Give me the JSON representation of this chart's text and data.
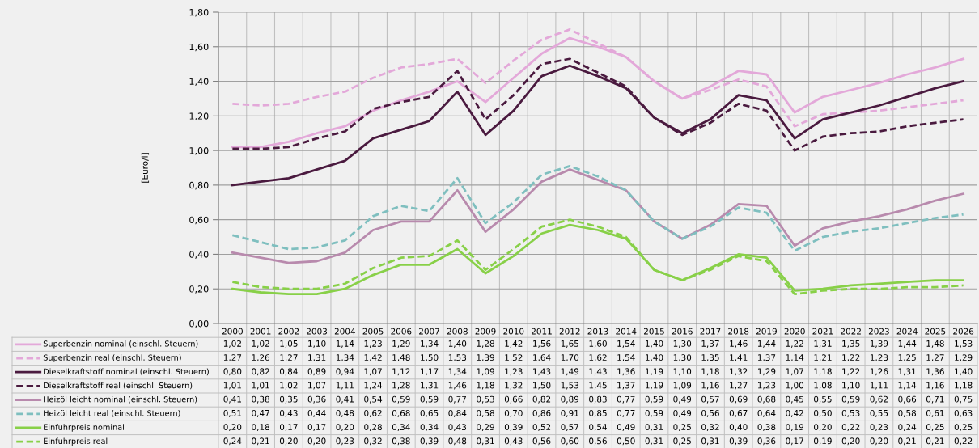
{
  "chart_data": {
    "type": "line",
    "ylabel": "[Euro/l]",
    "categories": [
      "2000",
      "2001",
      "2002",
      "2003",
      "2004",
      "2005",
      "2006",
      "2007",
      "2008",
      "2009",
      "2010",
      "2011",
      "2012",
      "2013",
      "2014",
      "2015",
      "2016",
      "2017",
      "2018",
      "2019",
      "2020",
      "2021",
      "2022",
      "2023",
      "2024",
      "2025",
      "2026"
    ],
    "ylim": [
      0,
      1.8
    ],
    "yticks": [
      {
        "value": 0,
        "label": "0,00"
      },
      {
        "value": 0.2,
        "label": "0,20"
      },
      {
        "value": 0.4,
        "label": "0,40"
      },
      {
        "value": 0.6,
        "label": "0,60"
      },
      {
        "value": 0.8,
        "label": "0,80"
      },
      {
        "value": 1.0,
        "label": "1,00"
      },
      {
        "value": 1.2,
        "label": "1,20"
      },
      {
        "value": 1.4,
        "label": "1,40"
      },
      {
        "value": 1.6,
        "label": "1,60"
      },
      {
        "value": 1.8,
        "label": "1,80"
      }
    ],
    "grid": true,
    "legend": "bottom",
    "marker": "none",
    "series": [
      {
        "name": "Superbenzin nominal (einschl. Steuern)",
        "color": "#e3a8d9",
        "line_style": "solid",
        "values": [
          1.02,
          1.02,
          1.05,
          1.1,
          1.14,
          1.23,
          1.29,
          1.34,
          1.4,
          1.28,
          1.42,
          1.56,
          1.65,
          1.6,
          1.54,
          1.4,
          1.3,
          1.37,
          1.46,
          1.44,
          1.22,
          1.31,
          1.35,
          1.39,
          1.44,
          1.48,
          1.53
        ],
        "value_labels": [
          "1,02",
          "1,02",
          "1,05",
          "1,10",
          "1,14",
          "1,23",
          "1,29",
          "1,34",
          "1,40",
          "1,28",
          "1,42",
          "1,56",
          "1,65",
          "1,60",
          "1,54",
          "1,40",
          "1,30",
          "1,37",
          "1,46",
          "1,44",
          "1,22",
          "1,31",
          "1,35",
          "1,39",
          "1,44",
          "1,48",
          "1,53"
        ]
      },
      {
        "name": "Superbenzin real (einschl. Steuern)",
        "color": "#e3a8d9",
        "line_style": "dashed",
        "values": [
          1.27,
          1.26,
          1.27,
          1.31,
          1.34,
          1.42,
          1.48,
          1.5,
          1.53,
          1.39,
          1.52,
          1.64,
          1.7,
          1.62,
          1.54,
          1.4,
          1.3,
          1.35,
          1.41,
          1.37,
          1.14,
          1.21,
          1.22,
          1.23,
          1.25,
          1.27,
          1.29
        ],
        "value_labels": [
          "1,27",
          "1,26",
          "1,27",
          "1,31",
          "1,34",
          "1,42",
          "1,48",
          "1,50",
          "1,53",
          "1,39",
          "1,52",
          "1,64",
          "1,70",
          "1,62",
          "1,54",
          "1,40",
          "1,30",
          "1,35",
          "1,41",
          "1,37",
          "1,14",
          "1,21",
          "1,22",
          "1,23",
          "1,25",
          "1,27",
          "1,29"
        ]
      },
      {
        "name": "Dieselkraftstoff nominal (einschl. Steuern)",
        "color": "#4a1a3f",
        "line_style": "solid",
        "values": [
          0.8,
          0.82,
          0.84,
          0.89,
          0.94,
          1.07,
          1.12,
          1.17,
          1.34,
          1.09,
          1.23,
          1.43,
          1.49,
          1.43,
          1.36,
          1.19,
          1.1,
          1.18,
          1.32,
          1.29,
          1.07,
          1.18,
          1.22,
          1.26,
          1.31,
          1.36,
          1.4
        ],
        "value_labels": [
          "0,80",
          "0,82",
          "0,84",
          "0,89",
          "0,94",
          "1,07",
          "1,12",
          "1,17",
          "1,34",
          "1,09",
          "1,23",
          "1,43",
          "1,49",
          "1,43",
          "1,36",
          "1,19",
          "1,10",
          "1,18",
          "1,32",
          "1,29",
          "1,07",
          "1,18",
          "1,22",
          "1,26",
          "1,31",
          "1,36",
          "1,40"
        ]
      },
      {
        "name": "Dieselkraftstoff real (einschl. Steuern)",
        "color": "#4a1a3f",
        "line_style": "dashed",
        "values": [
          1.01,
          1.01,
          1.02,
          1.07,
          1.11,
          1.24,
          1.28,
          1.31,
          1.46,
          1.18,
          1.32,
          1.5,
          1.53,
          1.45,
          1.37,
          1.19,
          1.09,
          1.16,
          1.27,
          1.23,
          1.0,
          1.08,
          1.1,
          1.11,
          1.14,
          1.16,
          1.18
        ],
        "value_labels": [
          "1,01",
          "1,01",
          "1,02",
          "1,07",
          "1,11",
          "1,24",
          "1,28",
          "1,31",
          "1,46",
          "1,18",
          "1,32",
          "1,50",
          "1,53",
          "1,45",
          "1,37",
          "1,19",
          "1,09",
          "1,16",
          "1,27",
          "1,23",
          "1,00",
          "1,08",
          "1,10",
          "1,11",
          "1,14",
          "1,16",
          "1,18"
        ]
      },
      {
        "name": "Heizöl leicht nominal (einschl. Steuern)",
        "color": "#b88aad",
        "line_style": "solid",
        "values": [
          0.41,
          0.38,
          0.35,
          0.36,
          0.41,
          0.54,
          0.59,
          0.59,
          0.77,
          0.53,
          0.66,
          0.82,
          0.89,
          0.83,
          0.77,
          0.59,
          0.49,
          0.57,
          0.69,
          0.68,
          0.45,
          0.55,
          0.59,
          0.62,
          0.66,
          0.71,
          0.75
        ],
        "value_labels": [
          "0,41",
          "0,38",
          "0,35",
          "0,36",
          "0,41",
          "0,54",
          "0,59",
          "0,59",
          "0,77",
          "0,53",
          "0,66",
          "0,82",
          "0,89",
          "0,83",
          "0,77",
          "0,59",
          "0,49",
          "0,57",
          "0,69",
          "0,68",
          "0,45",
          "0,55",
          "0,59",
          "0,62",
          "0,66",
          "0,71",
          "0,75"
        ]
      },
      {
        "name": "Heizöl leicht real (einschl. Steuern)",
        "color": "#7fbfbf",
        "line_style": "dashed",
        "values": [
          0.51,
          0.47,
          0.43,
          0.44,
          0.48,
          0.62,
          0.68,
          0.65,
          0.84,
          0.58,
          0.7,
          0.86,
          0.91,
          0.85,
          0.77,
          0.59,
          0.49,
          0.56,
          0.67,
          0.64,
          0.42,
          0.5,
          0.53,
          0.55,
          0.58,
          0.61,
          0.63
        ],
        "value_labels": [
          "0,51",
          "0,47",
          "0,43",
          "0,44",
          "0,48",
          "0,62",
          "0,68",
          "0,65",
          "0,84",
          "0,58",
          "0,70",
          "0,86",
          "0,91",
          "0,85",
          "0,77",
          "0,59",
          "0,49",
          "0,56",
          "0,67",
          "0,64",
          "0,42",
          "0,50",
          "0,53",
          "0,55",
          "0,58",
          "0,61",
          "0,63"
        ]
      },
      {
        "name": "Einfuhrpreis nominal",
        "color": "#88d048",
        "line_style": "solid",
        "values": [
          0.2,
          0.18,
          0.17,
          0.17,
          0.2,
          0.28,
          0.34,
          0.34,
          0.43,
          0.29,
          0.39,
          0.52,
          0.57,
          0.54,
          0.49,
          0.31,
          0.25,
          0.32,
          0.4,
          0.38,
          0.19,
          0.2,
          0.22,
          0.23,
          0.24,
          0.25,
          0.25
        ],
        "value_labels": [
          "0,20",
          "0,18",
          "0,17",
          "0,17",
          "0,20",
          "0,28",
          "0,34",
          "0,34",
          "0,43",
          "0,29",
          "0,39",
          "0,52",
          "0,57",
          "0,54",
          "0,49",
          "0,31",
          "0,25",
          "0,32",
          "0,40",
          "0,38",
          "0,19",
          "0,20",
          "0,22",
          "0,23",
          "0,24",
          "0,25",
          "0,25"
        ]
      },
      {
        "name": "Einfuhrpreis real",
        "color": "#88d048",
        "line_style": "dashed",
        "values": [
          0.24,
          0.21,
          0.2,
          0.2,
          0.23,
          0.32,
          0.38,
          0.39,
          0.48,
          0.31,
          0.43,
          0.56,
          0.6,
          0.56,
          0.5,
          0.31,
          0.25,
          0.31,
          0.39,
          0.36,
          0.17,
          0.19,
          0.2,
          0.2,
          0.21,
          0.21,
          0.22
        ],
        "value_labels": [
          "0,24",
          "0,21",
          "0,20",
          "0,20",
          "0,23",
          "0,32",
          "0,38",
          "0,39",
          "0,48",
          "0,31",
          "0,43",
          "0,56",
          "0,60",
          "0,56",
          "0,50",
          "0,31",
          "0,25",
          "0,31",
          "0,39",
          "0,36",
          "0,17",
          "0,19",
          "0,20",
          "0,20",
          "0,21",
          "0,21",
          "0,22"
        ]
      }
    ]
  }
}
